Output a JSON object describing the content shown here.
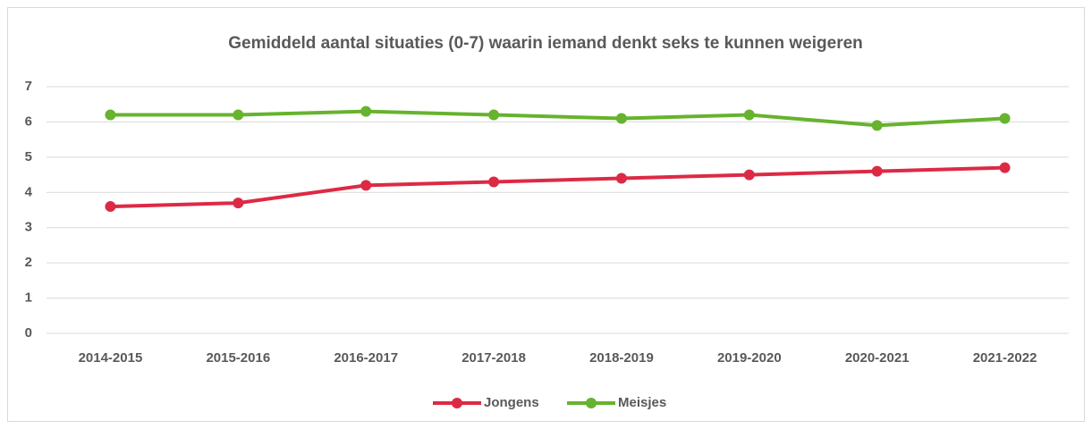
{
  "chart_data": {
    "type": "line",
    "title": "Gemiddeld aantal situaties (0-7) waarin iemand denkt seks te kunnen weigeren",
    "categories": [
      "2014-2015",
      "2015-2016",
      "2016-2017",
      "2017-2018",
      "2018-2019",
      "2019-2020",
      "2020-2021",
      "2021-2022"
    ],
    "series": [
      {
        "name": "Jongens",
        "color": "#dc2a45",
        "values": [
          3.6,
          3.7,
          4.2,
          4.3,
          4.4,
          4.5,
          4.6,
          4.7
        ]
      },
      {
        "name": "Meisjes",
        "color": "#66b32e",
        "values": [
          6.2,
          6.2,
          6.3,
          6.2,
          6.1,
          6.2,
          5.9,
          6.1
        ]
      }
    ],
    "ylim": [
      0,
      7
    ],
    "yticks": [
      0,
      1,
      2,
      3,
      4,
      5,
      6,
      7
    ],
    "grid": true,
    "legend": "bottom"
  }
}
